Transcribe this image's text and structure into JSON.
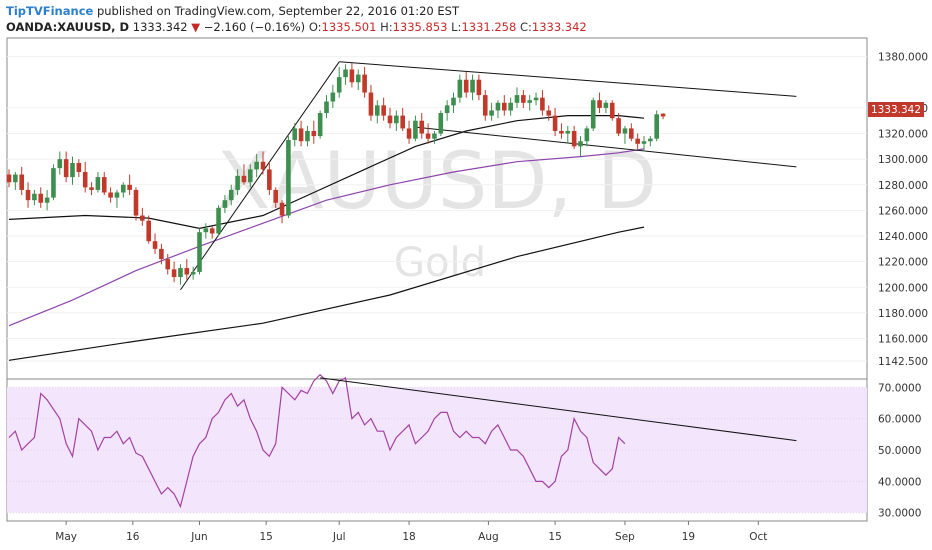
{
  "header": {
    "publisher": "TipTVFinance",
    "published_text": "published on TradingView.com, September 22, 2016 01:20 EST",
    "symbol": "OANDA:XAUUSD, D",
    "last": "1333.342",
    "change": "−2.160 (−0.16%)",
    "open_label": "O:",
    "open": "1335.501",
    "high_label": "H:",
    "high": "1335.853",
    "low_label": "L:",
    "low": "1331.258",
    "close_label": "C:",
    "close": "1333.342"
  },
  "watermark": {
    "symbol": "XAUUSD, D",
    "name": "Gold"
  },
  "colors": {
    "up": "#3e8e4f",
    "down": "#c0392b",
    "sma50": "#111111",
    "sma100": "#8e44ad",
    "sma200": "#111111",
    "rsi": "#a341a3",
    "rsi_band": "#f3e5fb"
  },
  "chart_data": [
    {
      "type": "candlestick",
      "title": "OANDA:XAUUSD, D",
      "ylim": [
        1130,
        1393
      ],
      "y_ticks": [
        "1380.000",
        "1340.000",
        "1320.000",
        "1300.000",
        "1280.000",
        "1260.000",
        "1240.000",
        "1220.000",
        "1200.000",
        "1180.000",
        "1160.000",
        "1142.500"
      ],
      "x_ticks": [
        "May",
        "16",
        "Jun",
        "15",
        "Jul",
        "18",
        "Aug",
        "15",
        "Sep",
        "19",
        "Oct"
      ],
      "last_price_label": "1333.342",
      "candles": [
        {
          "o": 1288,
          "h": 1292,
          "l": 1278,
          "c": 1282
        },
        {
          "o": 1282,
          "h": 1290,
          "l": 1276,
          "c": 1288
        },
        {
          "o": 1288,
          "h": 1294,
          "l": 1272,
          "c": 1276
        },
        {
          "o": 1276,
          "h": 1282,
          "l": 1262,
          "c": 1268
        },
        {
          "o": 1268,
          "h": 1276,
          "l": 1264,
          "c": 1273
        },
        {
          "o": 1273,
          "h": 1278,
          "l": 1262,
          "c": 1266
        },
        {
          "o": 1266,
          "h": 1276,
          "l": 1260,
          "c": 1270
        },
        {
          "o": 1270,
          "h": 1296,
          "l": 1268,
          "c": 1293
        },
        {
          "o": 1293,
          "h": 1306,
          "l": 1288,
          "c": 1300
        },
        {
          "o": 1300,
          "h": 1306,
          "l": 1282,
          "c": 1286
        },
        {
          "o": 1286,
          "h": 1302,
          "l": 1280,
          "c": 1297
        },
        {
          "o": 1297,
          "h": 1300,
          "l": 1286,
          "c": 1290
        },
        {
          "o": 1290,
          "h": 1298,
          "l": 1274,
          "c": 1278
        },
        {
          "o": 1278,
          "h": 1282,
          "l": 1272,
          "c": 1276
        },
        {
          "o": 1276,
          "h": 1290,
          "l": 1274,
          "c": 1286
        },
        {
          "o": 1286,
          "h": 1290,
          "l": 1272,
          "c": 1274
        },
        {
          "o": 1274,
          "h": 1278,
          "l": 1266,
          "c": 1270
        },
        {
          "o": 1270,
          "h": 1276,
          "l": 1262,
          "c": 1274
        },
        {
          "o": 1274,
          "h": 1282,
          "l": 1270,
          "c": 1280
        },
        {
          "o": 1280,
          "h": 1288,
          "l": 1272,
          "c": 1276
        },
        {
          "o": 1276,
          "h": 1278,
          "l": 1252,
          "c": 1256
        },
        {
          "o": 1256,
          "h": 1262,
          "l": 1248,
          "c": 1252
        },
        {
          "o": 1252,
          "h": 1256,
          "l": 1234,
          "c": 1236
        },
        {
          "o": 1236,
          "h": 1242,
          "l": 1226,
          "c": 1230
        },
        {
          "o": 1230,
          "h": 1234,
          "l": 1218,
          "c": 1222
        },
        {
          "o": 1222,
          "h": 1226,
          "l": 1210,
          "c": 1214
        },
        {
          "o": 1214,
          "h": 1220,
          "l": 1204,
          "c": 1208
        },
        {
          "o": 1208,
          "h": 1218,
          "l": 1202,
          "c": 1215
        },
        {
          "o": 1215,
          "h": 1222,
          "l": 1206,
          "c": 1210
        },
        {
          "o": 1210,
          "h": 1216,
          "l": 1206,
          "c": 1212
        },
        {
          "o": 1212,
          "h": 1246,
          "l": 1210,
          "c": 1243
        },
        {
          "o": 1243,
          "h": 1250,
          "l": 1238,
          "c": 1246
        },
        {
          "o": 1246,
          "h": 1248,
          "l": 1238,
          "c": 1242
        },
        {
          "o": 1242,
          "h": 1264,
          "l": 1240,
          "c": 1262
        },
        {
          "o": 1262,
          "h": 1272,
          "l": 1258,
          "c": 1268
        },
        {
          "o": 1268,
          "h": 1280,
          "l": 1264,
          "c": 1276
        },
        {
          "o": 1276,
          "h": 1292,
          "l": 1272,
          "c": 1287
        },
        {
          "o": 1287,
          "h": 1296,
          "l": 1280,
          "c": 1282
        },
        {
          "o": 1282,
          "h": 1296,
          "l": 1278,
          "c": 1292
        },
        {
          "o": 1292,
          "h": 1304,
          "l": 1286,
          "c": 1298
        },
        {
          "o": 1298,
          "h": 1306,
          "l": 1288,
          "c": 1292
        },
        {
          "o": 1292,
          "h": 1298,
          "l": 1272,
          "c": 1276
        },
        {
          "o": 1276,
          "h": 1278,
          "l": 1262,
          "c": 1266
        },
        {
          "o": 1266,
          "h": 1268,
          "l": 1250,
          "c": 1256
        },
        {
          "o": 1256,
          "h": 1318,
          "l": 1254,
          "c": 1315
        },
        {
          "o": 1315,
          "h": 1328,
          "l": 1310,
          "c": 1324
        },
        {
          "o": 1324,
          "h": 1330,
          "l": 1310,
          "c": 1314
        },
        {
          "o": 1314,
          "h": 1326,
          "l": 1310,
          "c": 1322
        },
        {
          "o": 1322,
          "h": 1330,
          "l": 1312,
          "c": 1318
        },
        {
          "o": 1318,
          "h": 1338,
          "l": 1316,
          "c": 1336
        },
        {
          "o": 1336,
          "h": 1350,
          "l": 1332,
          "c": 1345
        },
        {
          "o": 1345,
          "h": 1358,
          "l": 1340,
          "c": 1352
        },
        {
          "o": 1352,
          "h": 1372,
          "l": 1348,
          "c": 1364
        },
        {
          "o": 1364,
          "h": 1374,
          "l": 1358,
          "c": 1370
        },
        {
          "o": 1370,
          "h": 1375,
          "l": 1356,
          "c": 1360
        },
        {
          "o": 1360,
          "h": 1370,
          "l": 1354,
          "c": 1366
        },
        {
          "o": 1366,
          "h": 1372,
          "l": 1348,
          "c": 1352
        },
        {
          "o": 1352,
          "h": 1358,
          "l": 1330,
          "c": 1334
        },
        {
          "o": 1334,
          "h": 1346,
          "l": 1328,
          "c": 1342
        },
        {
          "o": 1342,
          "h": 1348,
          "l": 1330,
          "c": 1334
        },
        {
          "o": 1334,
          "h": 1340,
          "l": 1324,
          "c": 1328
        },
        {
          "o": 1328,
          "h": 1338,
          "l": 1322,
          "c": 1334
        },
        {
          "o": 1334,
          "h": 1340,
          "l": 1322,
          "c": 1324
        },
        {
          "o": 1324,
          "h": 1330,
          "l": 1312,
          "c": 1316
        },
        {
          "o": 1316,
          "h": 1334,
          "l": 1314,
          "c": 1330
        },
        {
          "o": 1330,
          "h": 1336,
          "l": 1316,
          "c": 1320
        },
        {
          "o": 1320,
          "h": 1328,
          "l": 1312,
          "c": 1316
        },
        {
          "o": 1316,
          "h": 1322,
          "l": 1312,
          "c": 1320
        },
        {
          "o": 1320,
          "h": 1338,
          "l": 1318,
          "c": 1336
        },
        {
          "o": 1336,
          "h": 1346,
          "l": 1330,
          "c": 1342
        },
        {
          "o": 1342,
          "h": 1352,
          "l": 1336,
          "c": 1348
        },
        {
          "o": 1348,
          "h": 1366,
          "l": 1344,
          "c": 1362
        },
        {
          "o": 1362,
          "h": 1368,
          "l": 1348,
          "c": 1352
        },
        {
          "o": 1352,
          "h": 1366,
          "l": 1346,
          "c": 1362
        },
        {
          "o": 1362,
          "h": 1366,
          "l": 1346,
          "c": 1350
        },
        {
          "o": 1350,
          "h": 1354,
          "l": 1330,
          "c": 1334
        },
        {
          "o": 1334,
          "h": 1344,
          "l": 1330,
          "c": 1338
        },
        {
          "o": 1338,
          "h": 1346,
          "l": 1332,
          "c": 1344
        },
        {
          "o": 1344,
          "h": 1350,
          "l": 1334,
          "c": 1338
        },
        {
          "o": 1338,
          "h": 1348,
          "l": 1334,
          "c": 1344
        },
        {
          "o": 1344,
          "h": 1356,
          "l": 1340,
          "c": 1350
        },
        {
          "o": 1350,
          "h": 1354,
          "l": 1340,
          "c": 1344
        },
        {
          "o": 1344,
          "h": 1350,
          "l": 1338,
          "c": 1346
        },
        {
          "o": 1346,
          "h": 1352,
          "l": 1342,
          "c": 1348
        },
        {
          "o": 1348,
          "h": 1354,
          "l": 1334,
          "c": 1338
        },
        {
          "o": 1338,
          "h": 1342,
          "l": 1330,
          "c": 1334
        },
        {
          "o": 1334,
          "h": 1340,
          "l": 1318,
          "c": 1322
        },
        {
          "o": 1322,
          "h": 1328,
          "l": 1316,
          "c": 1320
        },
        {
          "o": 1320,
          "h": 1326,
          "l": 1312,
          "c": 1322
        },
        {
          "o": 1322,
          "h": 1326,
          "l": 1308,
          "c": 1310
        },
        {
          "o": 1310,
          "h": 1318,
          "l": 1302,
          "c": 1314
        },
        {
          "o": 1314,
          "h": 1326,
          "l": 1310,
          "c": 1324
        },
        {
          "o": 1324,
          "h": 1348,
          "l": 1322,
          "c": 1346
        },
        {
          "o": 1346,
          "h": 1352,
          "l": 1336,
          "c": 1340
        },
        {
          "o": 1340,
          "h": 1346,
          "l": 1336,
          "c": 1344
        },
        {
          "o": 1344,
          "h": 1346,
          "l": 1330,
          "c": 1332
        },
        {
          "o": 1332,
          "h": 1336,
          "l": 1318,
          "c": 1320
        },
        {
          "o": 1320,
          "h": 1326,
          "l": 1312,
          "c": 1324
        },
        {
          "o": 1324,
          "h": 1328,
          "l": 1314,
          "c": 1316
        },
        {
          "o": 1316,
          "h": 1320,
          "l": 1308,
          "c": 1312
        },
        {
          "o": 1312,
          "h": 1318,
          "l": 1306,
          "c": 1314
        },
        {
          "o": 1314,
          "h": 1318,
          "l": 1310,
          "c": 1316
        },
        {
          "o": 1316,
          "h": 1338,
          "l": 1314,
          "c": 1335
        },
        {
          "o": 1335.501,
          "h": 1335.853,
          "l": 1331.258,
          "c": 1333.342
        }
      ],
      "moving_averages": [
        {
          "color": "#111111",
          "points": [
            [
              0,
              1253
            ],
            [
              12,
              1256
            ],
            [
              22,
              1254
            ],
            [
              30,
              1246
            ],
            [
              40,
              1256
            ],
            [
              48,
              1274
            ],
            [
              56,
              1292
            ],
            [
              64,
              1310
            ],
            [
              72,
              1322
            ],
            [
              80,
              1330
            ],
            [
              88,
              1334
            ],
            [
              96,
              1334
            ],
            [
              100,
              1332
            ]
          ]
        },
        {
          "color": "#8e44ad",
          "points": [
            [
              0,
              1170
            ],
            [
              10,
              1190
            ],
            [
              20,
              1213
            ],
            [
              30,
              1232
            ],
            [
              40,
              1250
            ],
            [
              50,
              1268
            ],
            [
              60,
              1280
            ],
            [
              70,
              1290
            ],
            [
              80,
              1298
            ],
            [
              90,
              1302
            ],
            [
              96,
              1305
            ],
            [
              100,
              1308
            ]
          ]
        },
        {
          "color": "#111111",
          "points": [
            [
              0,
              1143
            ],
            [
              20,
              1158
            ],
            [
              40,
              1172
            ],
            [
              60,
              1194
            ],
            [
              80,
              1224
            ],
            [
              96,
              1243
            ],
            [
              100,
              1247
            ]
          ]
        }
      ],
      "trendlines": [
        {
          "from": [
            27,
            1198
          ],
          "to": [
            52,
            1376
          ]
        },
        {
          "from": [
            52,
            1376
          ],
          "to": [
            124,
            1349
          ]
        },
        {
          "from": [
            64,
            1325
          ],
          "to": [
            124,
            1294
          ]
        }
      ]
    },
    {
      "type": "line",
      "title": "RSI",
      "ylim": [
        28,
        72
      ],
      "y_ticks": [
        "70.0000",
        "60.0000",
        "50.0000",
        "40.0000",
        "30.0000"
      ],
      "band": [
        30,
        70
      ],
      "values": [
        54,
        56,
        50,
        52,
        54,
        68,
        66,
        63,
        60,
        52,
        48,
        60,
        58,
        56,
        50,
        54,
        54,
        56,
        52,
        54,
        49,
        48,
        44,
        40,
        36,
        38,
        36,
        32,
        40,
        48,
        52,
        54,
        60,
        62,
        66,
        68,
        64,
        66,
        60,
        56,
        50,
        48,
        52,
        70,
        68,
        66,
        69,
        68,
        72,
        74,
        72,
        68,
        72,
        73,
        60,
        62,
        58,
        60,
        56,
        56,
        50,
        54,
        56,
        58,
        52,
        54,
        56,
        60,
        62,
        62,
        56,
        54,
        56,
        54,
        54,
        52,
        56,
        58,
        54,
        50,
        50,
        48,
        44,
        40,
        40,
        38,
        40,
        48,
        50,
        60,
        56,
        54,
        46,
        44,
        42,
        44,
        54,
        52
      ],
      "trendline": {
        "from": [
          49,
          73
        ],
        "to": [
          124,
          53
        ]
      }
    }
  ]
}
